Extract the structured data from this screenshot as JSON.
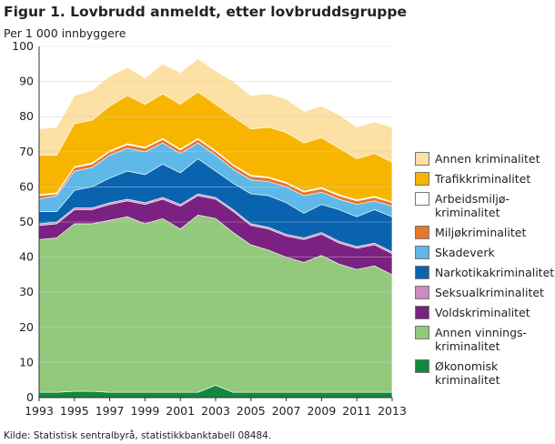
{
  "chart_data": {
    "type": "stacked-area",
    "title": "Figur 1. Lovbrudd anmeldt, etter lovbruddsgruppe",
    "y_label": "Per 1 000 innbyggere",
    "source": "Kilde: Statistisk sentralbyrå, statistikkbanktabell 08484.",
    "x": [
      1993,
      1994,
      1995,
      1996,
      1997,
      1998,
      1999,
      2000,
      2001,
      2002,
      2003,
      2004,
      2005,
      2006,
      2007,
      2008,
      2009,
      2010,
      2011,
      2012,
      2013
    ],
    "xlim": [
      1993,
      2013
    ],
    "xticks": [
      1993,
      1995,
      1997,
      1999,
      2001,
      2003,
      2005,
      2007,
      2009,
      2011,
      2013
    ],
    "ylim": [
      0,
      100
    ],
    "yticks": [
      0,
      10,
      20,
      30,
      40,
      50,
      60,
      70,
      80,
      90,
      100
    ],
    "grid": true,
    "series": [
      {
        "name": "Økonomisk\nkriminalitet",
        "color": "#12883c",
        "values": [
          1.5,
          1.5,
          1.8,
          1.8,
          1.5,
          1.5,
          1.5,
          1.5,
          1.5,
          1.5,
          3.5,
          1.5,
          1.5,
          1.5,
          1.5,
          1.5,
          1.5,
          1.5,
          1.5,
          1.5,
          1.5
        ]
      },
      {
        "name": "Annen vinnings-\nkriminalitet",
        "color": "#93c97c",
        "values": [
          43.5,
          44,
          47.7,
          47.7,
          49,
          50,
          48,
          49.5,
          46.5,
          50.5,
          47.5,
          45.5,
          42,
          40.5,
          38.5,
          37,
          39,
          36.5,
          35,
          36,
          33.5
        ]
      },
      {
        "name": "Voldskriminalitet",
        "color": "#7a2181",
        "values": [
          4,
          4,
          4,
          4,
          4.5,
          4.5,
          5.5,
          5.5,
          6.5,
          5.5,
          5.5,
          6,
          5.5,
          6,
          6,
          6.5,
          6,
          6,
          6,
          6,
          6
        ]
      },
      {
        "name": "Seksualkriminalitet",
        "color": "#c98cc1",
        "values": [
          0.5,
          0.5,
          0.5,
          0.5,
          0.5,
          0.5,
          0.5,
          0.5,
          0.5,
          0.5,
          0.5,
          0.5,
          0.5,
          0.5,
          0.5,
          0.5,
          0.5,
          0.5,
          0.5,
          0.5,
          0.5
        ]
      },
      {
        "name": "Narkotikakriminalitet",
        "color": "#0a63ae",
        "values": [
          3.5,
          3,
          5,
          6,
          7,
          8,
          8,
          9.5,
          9,
          10,
          7.5,
          7.5,
          8.5,
          9,
          9,
          7,
          8,
          9,
          8.5,
          9.5,
          10
        ]
      },
      {
        "name": "Skadeverk",
        "color": "#5eb8e8",
        "values": [
          3.5,
          4.5,
          5.5,
          5.5,
          6.5,
          6.5,
          6.5,
          6,
          5.5,
          4.5,
          4.5,
          4,
          4,
          4,
          4.5,
          5,
          3.5,
          3,
          3.5,
          2.5,
          3
        ]
      },
      {
        "name": "Miljøkriminalitet",
        "color": "#e8762d",
        "values": [
          1,
          0.5,
          1,
          1,
          1,
          1,
          1,
          1,
          1,
          1,
          1,
          1,
          1,
          1,
          1,
          1,
          1,
          1,
          1,
          1,
          1
        ]
      },
      {
        "name": "Arbeidsmiljø-\nkriminalitet",
        "color": "#ffffff",
        "values": [
          0.3,
          0.3,
          0.3,
          0.3,
          0.3,
          0.3,
          0.3,
          0.3,
          0.3,
          0.3,
          0.3,
          0.3,
          0.3,
          0.3,
          0.3,
          0.3,
          0.3,
          0.3,
          0.3,
          0.3,
          0.3
        ]
      },
      {
        "name": "Trafikkriminalitet",
        "color": "#f7b500",
        "values": [
          11.2,
          10.7,
          12.2,
          12.2,
          12.7,
          13.7,
          12.2,
          12.7,
          12.7,
          13.2,
          13.2,
          13.7,
          13.2,
          14.2,
          14.2,
          13.7,
          14.2,
          13.2,
          11.7,
          12.2,
          11.2
        ]
      },
      {
        "name": "Annen kriminalitet",
        "color": "#fde0a3",
        "values": [
          7.5,
          8,
          8,
          8.5,
          8.5,
          8,
          7.5,
          8.5,
          9,
          9.5,
          9.5,
          10,
          9.5,
          9.5,
          9.5,
          9,
          9,
          9.5,
          9,
          9,
          10
        ]
      }
    ]
  }
}
